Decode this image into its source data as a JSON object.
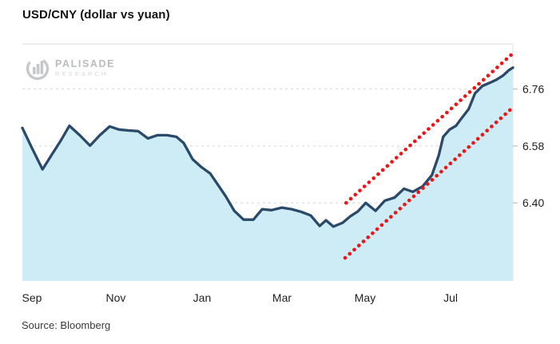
{
  "header": {
    "title": "USD/CNY (dollar vs yuan)"
  },
  "footer": {
    "source": "Source: Bloomberg"
  },
  "logo": {
    "name": "PALISADE",
    "sub": "RESEARCH"
  },
  "colors": {
    "line": "#2b4a69",
    "area_fill": "#cdecf6",
    "trend": "#f01414",
    "grid": "#d6d6d6",
    "border": "#dcdcdc",
    "tick": "#bbbbbb",
    "label": "#222222"
  },
  "chart_data": {
    "type": "area",
    "title": "USD/CNY (dollar vs yuan)",
    "source": "Source: Bloomberg",
    "grid": true,
    "legend_position": "none",
    "y_axis": {
      "side": "right",
      "range": [
        6.153,
        6.903
      ],
      "ticks": [
        {
          "label": "6.76",
          "value": 6.76
        },
        {
          "label": "6.58",
          "value": 6.58
        },
        {
          "label": "6.40",
          "value": 6.4
        }
      ]
    },
    "x_axis": {
      "ticks": [
        {
          "label": "Sep",
          "t": 0.0195
        },
        {
          "label": "Nov",
          "t": 0.1905
        },
        {
          "label": "Jan",
          "t": 0.3664
        },
        {
          "label": "Mar",
          "t": 0.5293
        },
        {
          "label": "May",
          "t": 0.6987
        },
        {
          "label": "Jul",
          "t": 0.873
        }
      ]
    },
    "series": {
      "name": "USD/CNY",
      "points": [
        [
          0.0,
          6.637
        ],
        [
          0.02,
          6.572
        ],
        [
          0.041,
          6.506
        ],
        [
          0.059,
          6.55
        ],
        [
          0.077,
          6.594
        ],
        [
          0.096,
          6.644
        ],
        [
          0.117,
          6.614
        ],
        [
          0.138,
          6.581
        ],
        [
          0.158,
          6.614
        ],
        [
          0.178,
          6.642
        ],
        [
          0.197,
          6.632
        ],
        [
          0.217,
          6.629
        ],
        [
          0.236,
          6.627
        ],
        [
          0.256,
          6.604
        ],
        [
          0.275,
          6.614
        ],
        [
          0.295,
          6.614
        ],
        [
          0.314,
          6.609
        ],
        [
          0.329,
          6.589
        ],
        [
          0.347,
          6.538
        ],
        [
          0.365,
          6.513
        ],
        [
          0.383,
          6.493
        ],
        [
          0.402,
          6.45
        ],
        [
          0.415,
          6.42
        ],
        [
          0.432,
          6.375
        ],
        [
          0.451,
          6.347
        ],
        [
          0.471,
          6.347
        ],
        [
          0.489,
          6.38
        ],
        [
          0.508,
          6.377
        ],
        [
          0.529,
          6.385
        ],
        [
          0.549,
          6.38
        ],
        [
          0.568,
          6.372
        ],
        [
          0.588,
          6.36
        ],
        [
          0.606,
          6.327
        ],
        [
          0.619,
          6.345
        ],
        [
          0.634,
          6.325
        ],
        [
          0.653,
          6.337
        ],
        [
          0.668,
          6.357
        ],
        [
          0.684,
          6.373
        ],
        [
          0.7,
          6.4
        ],
        [
          0.72,
          6.375
        ],
        [
          0.739,
          6.407
        ],
        [
          0.759,
          6.417
        ],
        [
          0.778,
          6.445
        ],
        [
          0.796,
          6.435
        ],
        [
          0.816,
          6.452
        ],
        [
          0.835,
          6.488
        ],
        [
          0.849,
          6.551
        ],
        [
          0.858,
          6.609
        ],
        [
          0.871,
          6.632
        ],
        [
          0.884,
          6.644
        ],
        [
          0.896,
          6.669
        ],
        [
          0.91,
          6.697
        ],
        [
          0.923,
          6.747
        ],
        [
          0.938,
          6.77
        ],
        [
          0.953,
          6.78
        ],
        [
          0.967,
          6.79
        ],
        [
          0.98,
          6.803
        ],
        [
          0.992,
          6.82
        ],
        [
          1.0,
          6.828
        ]
      ]
    },
    "trend_channel": [
      {
        "name": "upper-trendline",
        "from": [
          0.66,
          6.4
        ],
        "to": [
          1.0,
          6.873
        ]
      },
      {
        "name": "lower-trendline",
        "from": [
          0.658,
          6.226
        ],
        "to": [
          1.0,
          6.702
        ]
      }
    ]
  }
}
